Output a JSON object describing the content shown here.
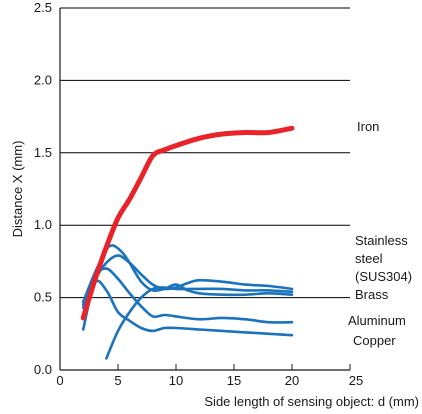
{
  "chart_data": {
    "type": "line",
    "title": "",
    "xlabel": "Side length of sensing object: d (mm)",
    "ylabel": "Distance X (mm)",
    "xlim": [
      0,
      25
    ],
    "ylim": [
      0,
      2.5
    ],
    "x_ticks": [
      "0",
      "5",
      "10",
      "15",
      "20",
      "25"
    ],
    "y_ticks": [
      "0.0",
      "0.5",
      "1.0",
      "1.5",
      "2.0",
      "2.5"
    ],
    "grid": "horizontal",
    "colors": {
      "iron": "#e8232a",
      "others": "#1a73bd",
      "axis": "#1a1a1a",
      "grid": "#000000"
    },
    "series": [
      {
        "name": "Iron",
        "color": "#e8232a",
        "x": [
          2,
          3,
          4,
          5,
          6,
          7,
          8,
          9,
          10,
          12,
          14,
          16,
          18,
          20
        ],
        "y": [
          0.36,
          0.62,
          0.85,
          1.05,
          1.18,
          1.33,
          1.48,
          1.52,
          1.55,
          1.6,
          1.63,
          1.64,
          1.64,
          1.67
        ]
      },
      {
        "name": "Stainless steel (SUS304)",
        "color": "#1a73bd",
        "x": [
          2,
          3,
          4,
          5,
          6,
          7,
          8,
          9,
          10,
          11,
          12,
          14,
          16,
          18,
          20
        ],
        "y": [
          0.43,
          0.62,
          0.74,
          0.79,
          0.74,
          0.66,
          0.59,
          0.56,
          0.57,
          0.6,
          0.62,
          0.61,
          0.59,
          0.58,
          0.56
        ]
      },
      {
        "name": "Brass",
        "color": "#1a73bd",
        "x": [
          2,
          3,
          4,
          4.5,
          5,
          5.5,
          6,
          7,
          8,
          9,
          10,
          11,
          12,
          14,
          16,
          18,
          20
        ],
        "y": [
          0.47,
          0.67,
          0.83,
          0.86,
          0.84,
          0.8,
          0.74,
          0.61,
          0.55,
          0.56,
          0.59,
          0.55,
          0.53,
          0.52,
          0.52,
          0.53,
          0.52
        ]
      },
      {
        "name": "Aluminum",
        "color": "#1a73bd",
        "x": [
          2,
          3,
          4,
          5,
          6,
          7,
          8,
          9,
          10,
          12,
          14,
          16,
          18,
          20
        ],
        "y": [
          0.45,
          0.65,
          0.7,
          0.63,
          0.53,
          0.44,
          0.37,
          0.38,
          0.37,
          0.35,
          0.36,
          0.35,
          0.33,
          0.33
        ]
      },
      {
        "name": "Copper",
        "color": "#1a73bd",
        "x": [
          2,
          3,
          4,
          5,
          6,
          7,
          8,
          9,
          10,
          12,
          14,
          16,
          18,
          20
        ],
        "y": [
          0.28,
          0.6,
          0.55,
          0.4,
          0.34,
          0.29,
          0.27,
          0.29,
          0.29,
          0.28,
          0.27,
          0.26,
          0.25,
          0.24
        ]
      },
      {
        "name": "",
        "color": "#1a73bd",
        "x": [
          4,
          5,
          6,
          7,
          8,
          9,
          10,
          12,
          14,
          16,
          18,
          20
        ],
        "y": [
          0.08,
          0.27,
          0.4,
          0.5,
          0.56,
          0.57,
          0.56,
          0.56,
          0.56,
          0.55,
          0.55,
          0.54
        ]
      }
    ],
    "labels": [
      {
        "text": "Iron",
        "series": "Iron"
      },
      {
        "text": "Stainless",
        "series": "Stainless steel (SUS304)",
        "line": 0
      },
      {
        "text": "steel",
        "series": "Stainless steel (SUS304)",
        "line": 1
      },
      {
        "text": "(SUS304)",
        "series": "Stainless steel (SUS304)",
        "line": 2
      },
      {
        "text": "Brass",
        "series": "Brass"
      },
      {
        "text": "Aluminum",
        "series": "Aluminum"
      },
      {
        "text": "Copper",
        "series": "Copper"
      }
    ]
  }
}
